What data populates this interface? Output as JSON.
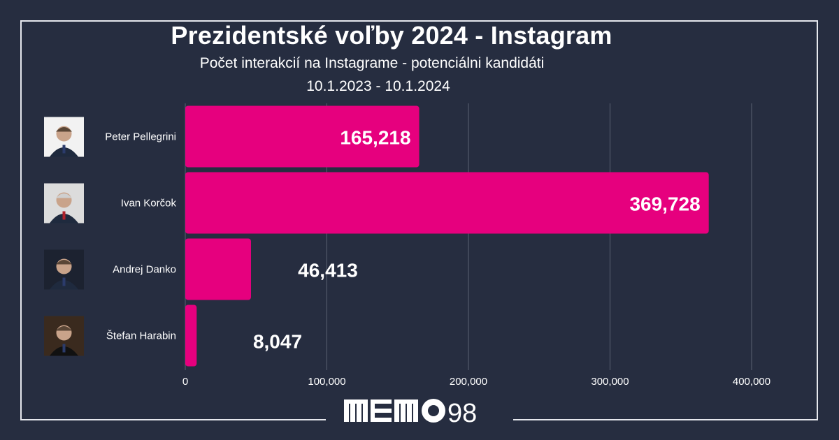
{
  "title": "Prezidentské voľby 2024 - Instagram",
  "subtitle": "Počet interakcií na Instagrame - potenciálni kandidáti",
  "date_range": "10.1.2023 - 10.1.2024",
  "colors": {
    "background": "#262d40",
    "bar": "#e6007e",
    "gridline": "#5a6172",
    "text": "#ffffff"
  },
  "chart_data": {
    "type": "bar",
    "orientation": "horizontal",
    "title": "Prezidentské voľby 2024 - Instagram",
    "subtitle": "Počet interakcií na Instagrame - potenciálni kandidáti",
    "categories": [
      "Peter Pellegrini",
      "Ivan Korčok",
      "Andrej Danko",
      "Štefan Harabin"
    ],
    "values": [
      165218,
      369728,
      46413,
      8047
    ],
    "value_labels": [
      "165,218",
      "369,728",
      "46,413",
      "8,047"
    ],
    "xlim": [
      0,
      400000
    ],
    "x_ticks": [
      0,
      100000,
      200000,
      300000,
      400000
    ],
    "x_tick_labels": [
      "0",
      "100,000",
      "200,000",
      "300,000",
      "400,000"
    ],
    "grid": true,
    "legend": "none"
  },
  "logo": {
    "text": "MEMO 98",
    "digits": "98"
  },
  "avatars": [
    "portrait-icon",
    "portrait-icon",
    "portrait-icon",
    "portrait-icon"
  ]
}
